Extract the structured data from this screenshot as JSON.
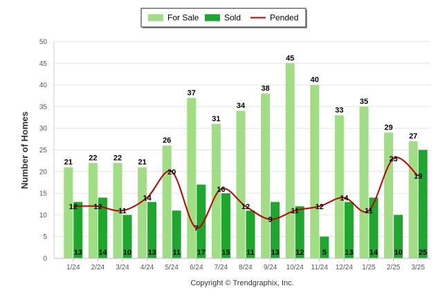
{
  "chart_data": {
    "type": "bar",
    "ylabel": "Number of Homes",
    "xlabel": "",
    "ylim": [
      0,
      50
    ],
    "yticks": [
      0,
      5,
      10,
      15,
      20,
      25,
      30,
      35,
      40,
      45,
      50
    ],
    "grid": true,
    "legend_position": "top-center",
    "categories": [
      "1/24",
      "2/24",
      "3/24",
      "4/24",
      "5/24",
      "6/24",
      "7/24",
      "8/24",
      "9/24",
      "10/24",
      "11/24",
      "12/24",
      "1/25",
      "2/25",
      "3/25"
    ],
    "series": [
      {
        "name": "For Sale",
        "type": "bar",
        "color": "#a1dd84",
        "values": [
          21,
          22,
          22,
          21,
          26,
          37,
          31,
          34,
          38,
          45,
          40,
          33,
          35,
          29,
          27
        ]
      },
      {
        "name": "Sold",
        "type": "bar",
        "color": "#1fa62e",
        "values": [
          13,
          14,
          10,
          13,
          11,
          17,
          15,
          11,
          13,
          12,
          5,
          13,
          14,
          10,
          25
        ]
      },
      {
        "name": "Pended",
        "type": "line",
        "color": "#c00000",
        "values": [
          12,
          12,
          11,
          14,
          20,
          7,
          16,
          12,
          9,
          11,
          12,
          14,
          11,
          23,
          19
        ]
      }
    ]
  },
  "credit": "Copyright © Trendgraphix, Inc."
}
